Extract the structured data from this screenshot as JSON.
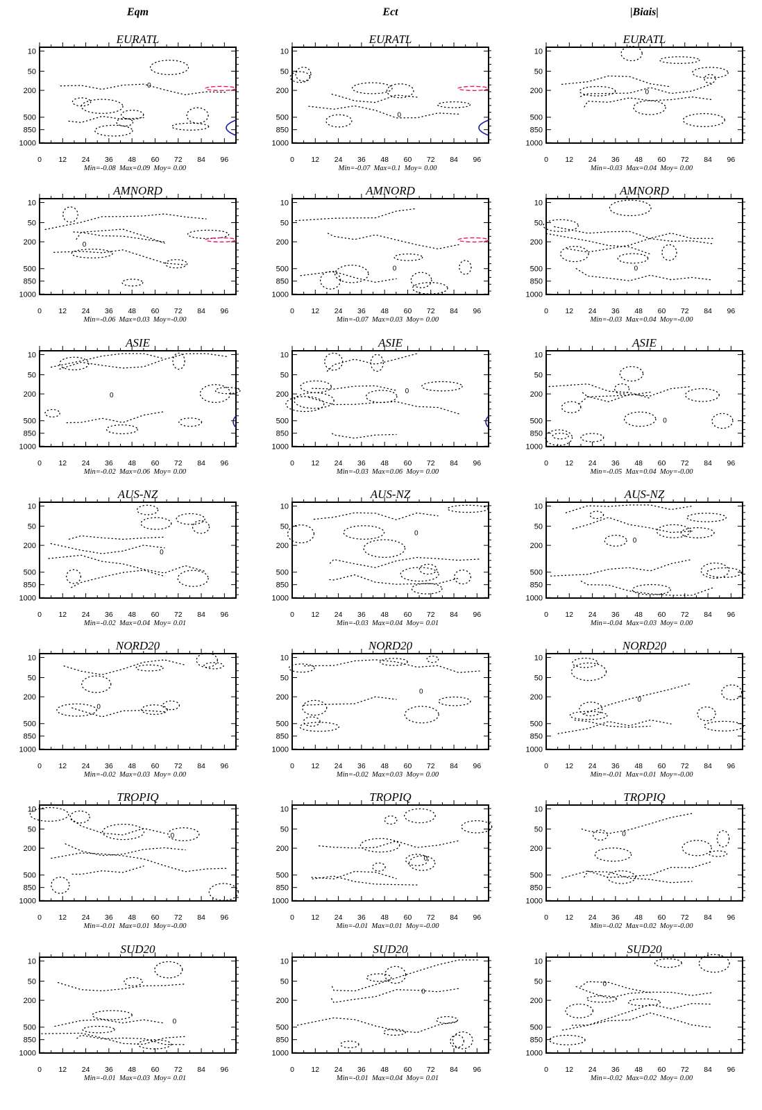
{
  "chart_data": {
    "type": "contour-grid",
    "column_titles": [
      "Eqm",
      "Ect",
      "|Biais|"
    ],
    "y_ticks": [
      "10",
      "50",
      "200",
      "500",
      "850",
      "1000"
    ],
    "x_ticks": [
      "0",
      "12",
      "24",
      "36",
      "48",
      "60",
      "72",
      "84",
      "96"
    ],
    "x_range": [
      0,
      102
    ],
    "y_axis_inverted": true,
    "contour_label": "0",
    "series_colors": {
      "contour": "#000000",
      "positive": "#e8156b",
      "negative": "#1a1a9e"
    },
    "rows": [
      {
        "region": "EURATL",
        "panels": [
          {
            "stats": "Min=-0.08  Max=0.09  Moy= 0.00",
            "min": -0.08,
            "max": 0.09,
            "moy": 0.0
          },
          {
            "stats": "Min=-0.07  Max=0.1  Moy= 0.00",
            "min": -0.07,
            "max": 0.1,
            "moy": 0.0
          },
          {
            "stats": "Min=-0.03  Max=0.04  Moy= 0.00",
            "min": -0.03,
            "max": 0.04,
            "moy": 0.0
          }
        ]
      },
      {
        "region": "AMNORD",
        "panels": [
          {
            "stats": "Min=-0.06  Max=0.03  Moy=-0.00",
            "min": -0.06,
            "max": 0.03,
            "moy": -0.0
          },
          {
            "stats": "Min=-0.07  Max=0.03  Moy= 0.00",
            "min": -0.07,
            "max": 0.03,
            "moy": 0.0
          },
          {
            "stats": "Min=-0.03  Max=0.04  Moy=-0.00",
            "min": -0.03,
            "max": 0.04,
            "moy": -0.0
          }
        ]
      },
      {
        "region": "ASIE",
        "panels": [
          {
            "stats": "Min=-0.02  Max=0.06  Moy= 0.00",
            "min": -0.02,
            "max": 0.06,
            "moy": 0.0
          },
          {
            "stats": "Min=-0.03  Max=0.06  Moy= 0.00",
            "min": -0.03,
            "max": 0.06,
            "moy": 0.0
          },
          {
            "stats": "Min=-0.05  Max=0.04  Moy=-0.00",
            "min": -0.05,
            "max": 0.04,
            "moy": -0.0
          }
        ]
      },
      {
        "region": "AUS-NZ",
        "panels": [
          {
            "stats": "Min=-0.02  Max=0.04  Moy= 0.01",
            "min": -0.02,
            "max": 0.04,
            "moy": 0.01
          },
          {
            "stats": "Min=-0.03  Max=0.04  Moy= 0.01",
            "min": -0.03,
            "max": 0.04,
            "moy": 0.01
          },
          {
            "stats": "Min=-0.04  Max=0.03  Moy= 0.00",
            "min": -0.04,
            "max": 0.03,
            "moy": 0.0
          }
        ]
      },
      {
        "region": "NORD20",
        "panels": [
          {
            "stats": "Min=-0.02  Max=0.03  Moy= 0.00",
            "min": -0.02,
            "max": 0.03,
            "moy": 0.0
          },
          {
            "stats": "Min=-0.02  Max=0.03  Moy= 0.00",
            "min": -0.02,
            "max": 0.03,
            "moy": 0.0
          },
          {
            "stats": "Min=-0.01  Max=0.01  Moy=-0.00",
            "min": -0.01,
            "max": 0.01,
            "moy": -0.0
          }
        ]
      },
      {
        "region": "TROPIQ",
        "panels": [
          {
            "stats": "Min=-0.01  Max=0.01  Moy=-0.00",
            "min": -0.01,
            "max": 0.01,
            "moy": -0.0
          },
          {
            "stats": "Min=-0.01  Max=0.01  Moy=-0.00",
            "min": -0.01,
            "max": 0.01,
            "moy": -0.0
          },
          {
            "stats": "Min=-0.02  Max=0.02  Moy=-0.00",
            "min": -0.02,
            "max": 0.02,
            "moy": -0.0
          }
        ]
      },
      {
        "region": "SUD20",
        "panels": [
          {
            "stats": "Min=-0.01  Max=0.03  Moy= 0.01",
            "min": -0.01,
            "max": 0.03,
            "moy": 0.01
          },
          {
            "stats": "Min=-0.01  Max=0.04  Moy= 0.01",
            "min": -0.01,
            "max": 0.04,
            "moy": 0.01
          },
          {
            "stats": "Min=-0.02  Max=0.02  Moy= 0.00",
            "min": -0.02,
            "max": 0.02,
            "moy": 0.0
          }
        ]
      }
    ]
  }
}
